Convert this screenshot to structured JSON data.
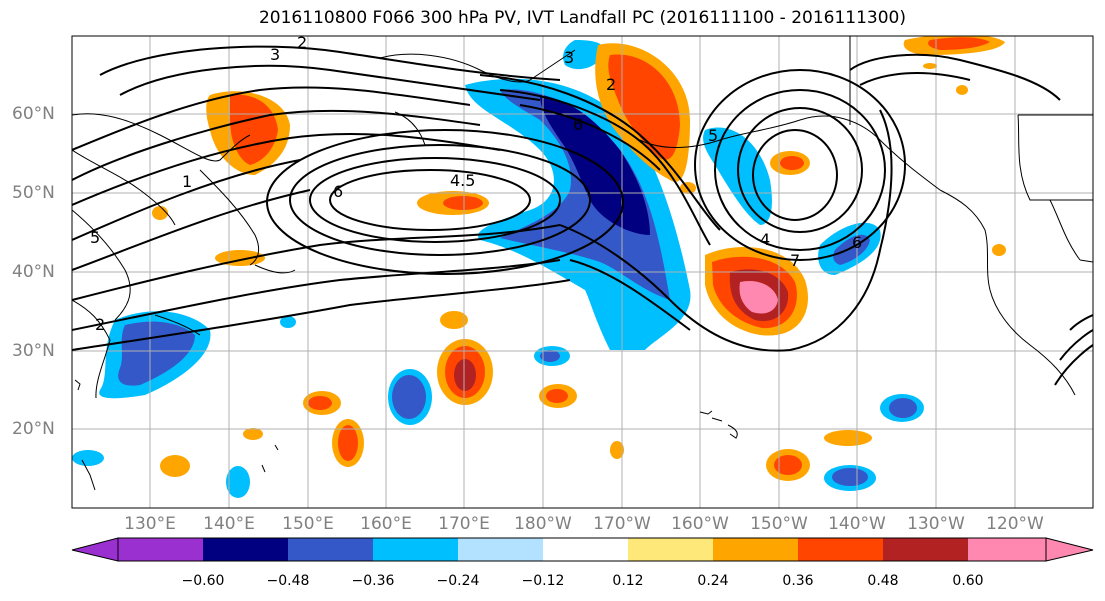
{
  "title": "2016110800 F066 300 hPa PV, IVT Landfall PC (2016111100 - 2016111300)",
  "latitude_labels": [
    "60°N",
    "50°N",
    "40°N",
    "30°N",
    "20°N"
  ],
  "longitude_labels": [
    "130°E",
    "140°E",
    "150°E",
    "160°E",
    "170°E",
    "180°W",
    "170°W",
    "160°W",
    "150°W",
    "140°W",
    "130°W",
    "120°W"
  ],
  "contour_labels": [
    "3",
    "2",
    "1",
    "5",
    "2",
    "6",
    "4.5",
    "6",
    "3",
    "2",
    "6",
    "7",
    "4",
    "5"
  ],
  "colorbar": {
    "tick_labels": [
      "−0.60",
      "−0.48",
      "−0.36",
      "−0.24",
      "−0.12",
      "0.12",
      "0.24",
      "0.36",
      "0.48",
      "0.60"
    ],
    "colors": [
      "#9b30d0",
      "#000080",
      "#3558c8",
      "#00bfff",
      "#b2e2ff",
      "#ffffff",
      "#ffe87a",
      "#ffa500",
      "#ff4500",
      "#b22222",
      "#ff88b0"
    ]
  },
  "colors": {
    "contour": "#000000",
    "coast": "#000000",
    "grid": "#b0b0b0",
    "axis_label": "#808080"
  }
}
